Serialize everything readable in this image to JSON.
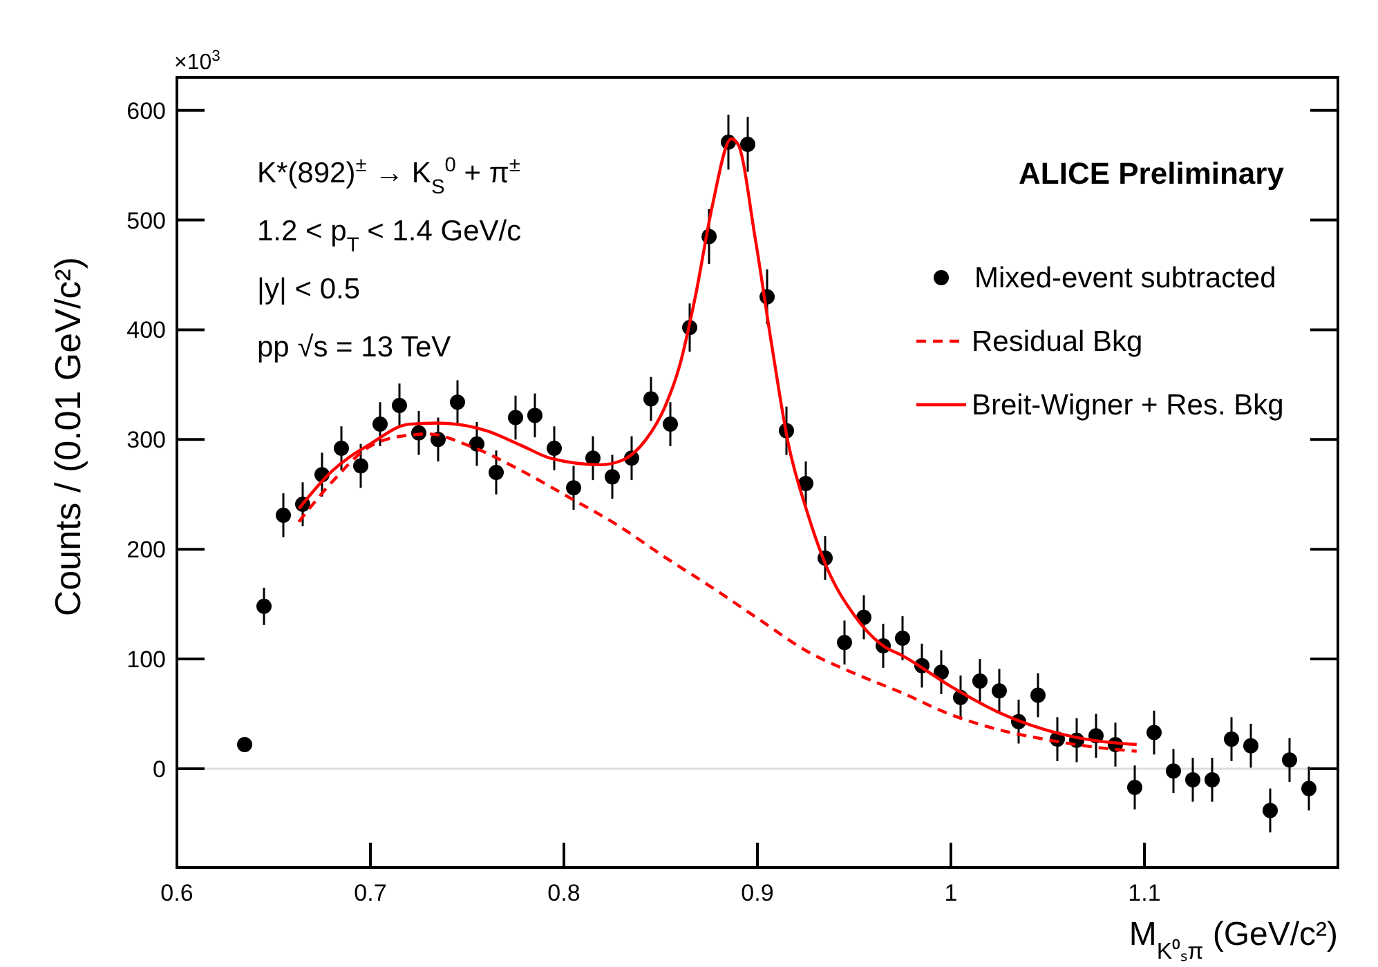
{
  "chart_data": {
    "type": "scatter",
    "xlabel": "M$_{K⁰ₛπ}$ (GeV/c²)",
    "ylabel": "Counts / (0.01 GeV/c²)",
    "annotations": [
      "K*(892)$^{±}$ → K$_{S}$$^{0}$ + π$^{±}$",
      "1.2 < p$_{T}$ < 1.4 GeV/c",
      "|y| < 0.5",
      "pp √s = 13 TeV",
      "ALICE Preliminary",
      "×10$^{3}$"
    ],
    "xlim": [
      0.6,
      1.2
    ],
    "xticks": [
      0.6,
      0.7,
      0.8,
      0.9,
      1,
      1.1
    ],
    "ylim": [
      -90,
      630
    ],
    "yticks": [
      0,
      100,
      200,
      300,
      400,
      500,
      600
    ],
    "legend": "top right",
    "ref_lines": [
      {
        "axis": "y",
        "value": 0,
        "label": null,
        "color": "#dddddd"
      }
    ],
    "series": [
      {
        "name": "Mixed-event subtracted",
        "marker": "circle",
        "color": "#000000",
        "x": [
          0.635,
          0.645,
          0.655,
          0.665,
          0.675,
          0.685,
          0.695,
          0.705,
          0.715,
          0.725,
          0.735,
          0.745,
          0.755,
          0.765,
          0.775,
          0.785,
          0.795,
          0.805,
          0.815,
          0.825,
          0.835,
          0.845,
          0.855,
          0.865,
          0.875,
          0.885,
          0.895,
          0.905,
          0.915,
          0.925,
          0.935,
          0.945,
          0.955,
          0.965,
          0.975,
          0.985,
          0.995,
          1.005,
          1.015,
          1.025,
          1.035,
          1.045,
          1.055,
          1.065,
          1.075,
          1.085,
          1.095,
          1.105,
          1.115,
          1.125,
          1.135,
          1.145,
          1.155,
          1.165,
          1.175,
          1.185
        ],
        "values": [
          22,
          148,
          231,
          241,
          268,
          292,
          276,
          314,
          331,
          306,
          300,
          334,
          296,
          270,
          320,
          322,
          292,
          256,
          283,
          266,
          283,
          337,
          314,
          402,
          485,
          571,
          569,
          430,
          308,
          260,
          192,
          115,
          138,
          112,
          119,
          94,
          88,
          65,
          80,
          71,
          43,
          67,
          27,
          26,
          30,
          22,
          -17,
          33,
          -2,
          -10,
          -10,
          27,
          21,
          -38,
          8,
          -18
        ],
        "errors": [
          null,
          17,
          20,
          20,
          20,
          20,
          20,
          20,
          20,
          20,
          20,
          20,
          20,
          20,
          20,
          20,
          20,
          20,
          20,
          20,
          20,
          20,
          20,
          22,
          25,
          25,
          25,
          25,
          22,
          20,
          20,
          20,
          20,
          20,
          20,
          20,
          20,
          20,
          20,
          20,
          20,
          20,
          20,
          20,
          20,
          20,
          20,
          20,
          20,
          20,
          20,
          20,
          20,
          20,
          20,
          20
        ]
      },
      {
        "name": "Residual Bkg",
        "type": "line",
        "line_style": "dashed",
        "color": "#ff0000",
        "x": [
          0.663,
          0.68,
          0.7,
          0.72,
          0.73,
          0.7515,
          0.7787,
          0.803,
          0.8277,
          0.852,
          0.8767,
          0.901,
          0.9257,
          0.95,
          0.975,
          0.999,
          1.024,
          1.048,
          1.073,
          1.096
        ],
        "values": [
          225,
          261,
          294,
          304,
          305,
          294,
          271,
          247,
          222,
          193,
          165,
          136,
          107,
          87,
          69,
          50,
          36,
          27,
          20,
          16
        ]
      },
      {
        "name": "Breit-Wigner + Res. Bkg",
        "type": "line",
        "line_style": "solid",
        "color": "#ff0000",
        "x": [
          0.663,
          0.68,
          0.7,
          0.72,
          0.735,
          0.76,
          0.7787,
          0.793,
          0.819,
          0.83,
          0.8424,
          0.852,
          0.8596,
          0.868,
          0.8767,
          0.8865,
          0.89,
          0.8988,
          0.9074,
          0.916,
          0.9257,
          0.9355,
          0.95,
          0.965,
          0.975,
          1.0,
          1.024,
          1.048,
          1.073,
          1.096
        ],
        "values": [
          237,
          271,
          296,
          314,
          315,
          308,
          294,
          283,
          277,
          281,
          300,
          329,
          366,
          431,
          513,
          574,
          569,
          484,
          386,
          296,
          234,
          185,
          140,
          112,
          103,
          75,
          52,
          36,
          26,
          22
        ]
      }
    ]
  }
}
